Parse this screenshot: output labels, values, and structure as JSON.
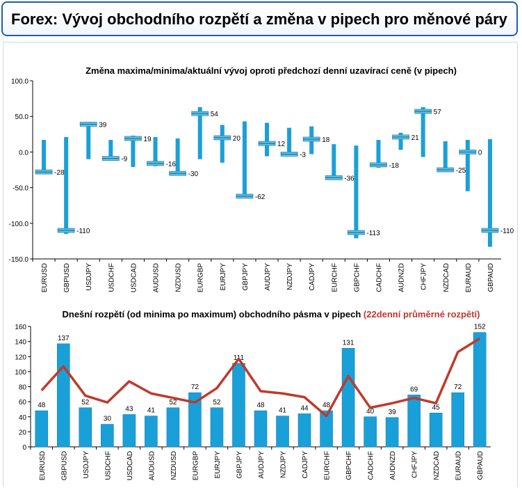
{
  "header": {
    "title": "Forex: Vývoj obchodního rozpětí a změna v pipech pro měnové páry"
  },
  "chart_data": [
    {
      "type": "range",
      "title": "Změna maxima/minima/aktuální vývoj oproti předchozí denní uzavírací ceně (v pipech)",
      "ylim": [
        -150,
        100
      ],
      "yticks": [
        "100.0",
        "50.0",
        "0.0",
        "-50.0",
        "-100.0",
        "-150.0"
      ],
      "categories": [
        "EURUSD",
        "GBPUSD",
        "USDJPY",
        "USDCHF",
        "USDCAD",
        "AUDUSD",
        "NZDUSD",
        "EURGBP",
        "EURJPY",
        "GBPJPY",
        "AUDJPY",
        "NZDJPY",
        "CADJPY",
        "EURCHF",
        "GBPCHF",
        "CADCHF",
        "AUDNZD",
        "CHFJPY",
        "NZDCAD",
        "EURAUD",
        "GBPAUD"
      ],
      "high": [
        17,
        21,
        41,
        17,
        23,
        21,
        19,
        63,
        38,
        43,
        41,
        34,
        36,
        11,
        9,
        17,
        27,
        63,
        15,
        17,
        18
      ],
      "low": [
        -28,
        -115,
        -10,
        -12,
        -21,
        -20,
        -30,
        -10,
        -15,
        -65,
        -6,
        -6,
        -3,
        -38,
        -121,
        -22,
        3,
        -7,
        -28,
        -55,
        -133
      ],
      "current": [
        -28,
        -110,
        39,
        -9,
        19,
        -16,
        -30,
        54,
        20,
        -62,
        12,
        -3,
        18,
        -36,
        -113,
        -18,
        21,
        57,
        -25,
        0,
        -110
      ],
      "value_labels": [
        "-28",
        "-110",
        "39",
        "-9",
        "19",
        "-16",
        "-30",
        "54",
        "20",
        "-62",
        "12",
        "-3",
        "18",
        "-36",
        "-113",
        "-18",
        "21",
        "57",
        "-25",
        "0",
        "-110"
      ],
      "colors": {
        "bar": "#1aa0d8",
        "marker": "#5fc3e8"
      }
    },
    {
      "type": "bar",
      "title": "Dnešní rozpětí (od minima po maximum) obchodního pásma v pipech",
      "title_series": "(22denní průměrné rozpětí)",
      "ylim": [
        0,
        160
      ],
      "yticks": [
        "160",
        "140",
        "120",
        "100",
        "80",
        "60",
        "40",
        "20",
        "0"
      ],
      "categories": [
        "EURUSD",
        "GBPUSD",
        "USDJPY",
        "USDCHF",
        "USDCAD",
        "AUDUSD",
        "NZDUSD",
        "EURGBP",
        "EURJPY",
        "GBPJPY",
        "AUDJPY",
        "NZDJPY",
        "CADJPY",
        "EURCHF",
        "GBPCHF",
        "CADCHF",
        "AUDNZD",
        "CHFJPY",
        "NZDCAD",
        "EURAUD",
        "GBPAUD"
      ],
      "values": [
        48,
        137,
        52,
        30,
        43,
        41,
        52,
        72,
        52,
        111,
        48,
        41,
        44,
        48,
        131,
        40,
        39,
        69,
        45,
        72,
        152
      ],
      "value_labels": [
        "48",
        "137",
        "52",
        "30",
        "43",
        "41",
        "52",
        "72",
        "52",
        "111",
        "48",
        "41",
        "44",
        "48",
        "131",
        "40",
        "39",
        "69",
        "45",
        "72",
        "152"
      ],
      "average_22d": [
        75,
        107,
        68,
        59,
        87,
        71,
        65,
        59,
        78,
        117,
        74,
        71,
        66,
        41,
        94,
        52,
        58,
        65,
        58,
        126,
        144
      ],
      "colors": {
        "bar": "#1aa0d8",
        "line": "#c0392b",
        "title_series": "#c0392b"
      }
    }
  ]
}
